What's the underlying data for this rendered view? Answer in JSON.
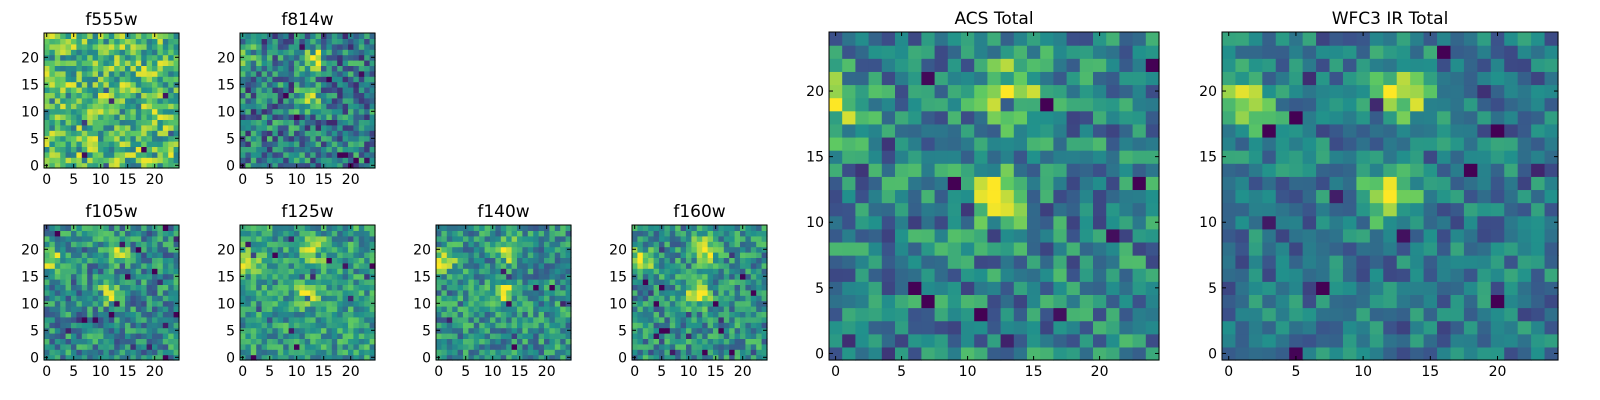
{
  "figure": "multi-panel image grid",
  "colormap": {
    "name": "viridis",
    "stops": [
      "#440154",
      "#3b528b",
      "#21918c",
      "#5ec962",
      "#fde725"
    ]
  },
  "chart_data": [
    {
      "type": "heatmap",
      "id": "p-f555w",
      "title": "f555w",
      "xticks": [
        0,
        5,
        10,
        15,
        20
      ],
      "yticks": [
        0,
        5,
        10,
        15,
        20
      ],
      "xlim": [
        -0.5,
        24.5
      ],
      "ylim": [
        -0.5,
        24.5
      ],
      "grid": false,
      "pixels": [
        25,
        25
      ],
      "pattern": {
        "bright_spots": [],
        "seed": 3,
        "base": 0.68,
        "noise": 0.3
      }
    },
    {
      "type": "heatmap",
      "id": "p-f814w",
      "title": "f814w",
      "xticks": [
        0,
        5,
        10,
        15,
        20
      ],
      "yticks": [
        0,
        5,
        10,
        15,
        20
      ],
      "xlim": [
        -0.5,
        24.5
      ],
      "ylim": [
        -0.5,
        24.5
      ],
      "grid": false,
      "pixels": [
        25,
        25
      ],
      "pattern": {
        "bright_spots": [
          [
            13,
            20,
            0.55
          ],
          [
            12,
            12,
            0.4
          ],
          [
            1,
            20,
            0.3
          ]
        ],
        "seed": 7,
        "base": 0.42,
        "noise": 0.3
      }
    },
    {
      "type": "heatmap",
      "id": "p-f105w",
      "title": "f105w",
      "xticks": [
        0,
        5,
        10,
        15,
        20
      ],
      "yticks": [
        0,
        5,
        10,
        15,
        20
      ],
      "xlim": [
        -0.5,
        24.5
      ],
      "ylim": [
        -0.5,
        24.5
      ],
      "grid": false,
      "pixels": [
        25,
        25
      ],
      "pattern": {
        "bright_spots": [
          [
            13,
            20,
            0.45
          ],
          [
            12,
            12,
            0.45
          ],
          [
            1,
            18,
            0.4
          ]
        ],
        "seed": 11,
        "base": 0.48,
        "noise": 0.25
      }
    },
    {
      "type": "heatmap",
      "id": "p-f125w",
      "title": "f125w",
      "xticks": [
        0,
        5,
        10,
        15,
        20
      ],
      "yticks": [
        0,
        5,
        10,
        15,
        20
      ],
      "xlim": [
        -0.5,
        24.5
      ],
      "ylim": [
        -0.5,
        24.5
      ],
      "grid": false,
      "pixels": [
        25,
        25
      ],
      "pattern": {
        "bright_spots": [
          [
            13,
            20,
            0.45
          ],
          [
            12,
            12,
            0.4
          ],
          [
            1,
            18,
            0.45
          ]
        ],
        "seed": 13,
        "base": 0.55,
        "noise": 0.22
      }
    },
    {
      "type": "heatmap",
      "id": "p-f140w",
      "title": "f140w",
      "xticks": [
        0,
        5,
        10,
        15,
        20
      ],
      "yticks": [
        0,
        5,
        10,
        15,
        20
      ],
      "xlim": [
        -0.5,
        24.5
      ],
      "ylim": [
        -0.5,
        24.5
      ],
      "grid": false,
      "pixels": [
        25,
        25
      ],
      "pattern": {
        "bright_spots": [
          [
            13,
            20,
            0.5
          ],
          [
            12,
            12,
            0.45
          ],
          [
            1,
            18,
            0.45
          ]
        ],
        "seed": 17,
        "base": 0.5,
        "noise": 0.24
      }
    },
    {
      "type": "heatmap",
      "id": "p-f160w",
      "title": "f160w",
      "xticks": [
        0,
        5,
        10,
        15,
        20
      ],
      "yticks": [
        0,
        5,
        10,
        15,
        20
      ],
      "xlim": [
        -0.5,
        24.5
      ],
      "ylim": [
        -0.5,
        24.5
      ],
      "grid": false,
      "pixels": [
        25,
        25
      ],
      "pattern": {
        "bright_spots": [
          [
            13,
            20,
            0.55
          ],
          [
            12,
            12,
            0.5
          ],
          [
            1,
            18,
            0.5
          ]
        ],
        "seed": 19,
        "base": 0.5,
        "noise": 0.24
      }
    },
    {
      "type": "heatmap",
      "id": "p-acs",
      "title": "ACS Total",
      "xticks": [
        0,
        5,
        10,
        15,
        20
      ],
      "yticks": [
        0,
        5,
        10,
        15,
        20
      ],
      "xlim": [
        -0.5,
        24.5
      ],
      "ylim": [
        -0.5,
        24.5
      ],
      "grid": false,
      "pixels": [
        25,
        25
      ],
      "pattern": {
        "bright_spots": [
          [
            13,
            20,
            0.6
          ],
          [
            12,
            12,
            0.5
          ],
          [
            0,
            19,
            0.4
          ]
        ],
        "seed": 23,
        "base": 0.45,
        "noise": 0.25
      }
    },
    {
      "type": "heatmap",
      "id": "p-wfc3",
      "title": "WFC3 IR Total",
      "xticks": [
        0,
        5,
        10,
        15,
        20
      ],
      "yticks": [
        0,
        5,
        10,
        15,
        20
      ],
      "xlim": [
        -0.5,
        24.5
      ],
      "ylim": [
        -0.5,
        24.5
      ],
      "grid": false,
      "pixels": [
        25,
        25
      ],
      "pattern": {
        "bright_spots": [
          [
            13,
            20,
            0.55
          ],
          [
            12,
            12,
            0.5
          ],
          [
            1,
            19,
            0.55
          ]
        ],
        "seed": 29,
        "base": 0.4,
        "noise": 0.2
      }
    }
  ]
}
